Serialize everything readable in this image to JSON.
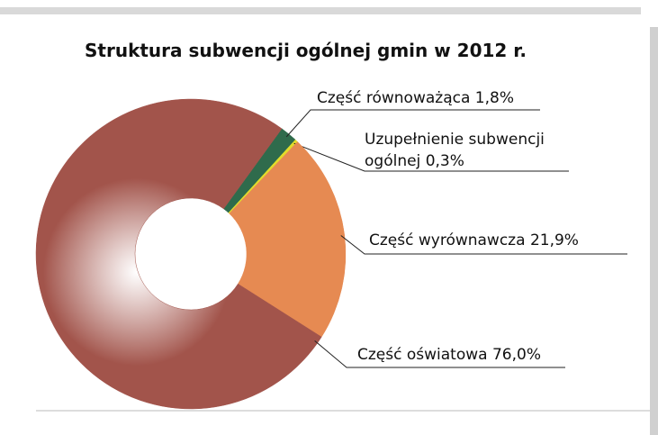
{
  "chart_data": {
    "type": "donut",
    "title": "Struktura subwencji ogólnej gmin w 2012 r.",
    "categories": [
      "Część równoważąca",
      "Uzupełnienie subwencji ogólnej",
      "Część wyrównawcza",
      "Część oświatowa"
    ],
    "values": [
      1.8,
      0.3,
      21.9,
      76.0
    ],
    "value_labels": [
      "1,8%",
      "0,3%",
      "21,9%",
      "76,0%"
    ],
    "colors": [
      "#2f6b4c",
      "#e2dc2a",
      "#e68a52",
      "#a2544b"
    ]
  }
}
